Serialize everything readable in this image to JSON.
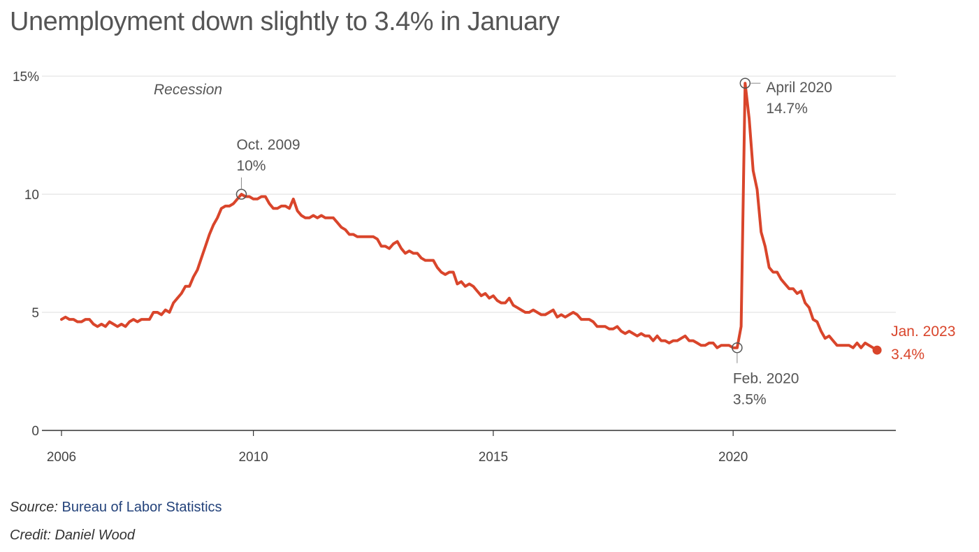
{
  "title": "Unemployment down slightly to 3.4% in January",
  "colors": {
    "line": "#d9452b",
    "text": "#555555",
    "grid": "#dddddd",
    "axis": "#333333",
    "source_link": "#23427a"
  },
  "chart_data": {
    "type": "line",
    "title": "Unemployment down slightly to 3.4% in January",
    "xlabel": "",
    "ylabel": "",
    "xlim": [
      2006,
      2023.1
    ],
    "ylim": [
      0,
      15
    ],
    "x_ticks": [
      {
        "value": 2006,
        "label": "2006"
      },
      {
        "value": 2010,
        "label": "2010"
      },
      {
        "value": 2015,
        "label": "2015"
      },
      {
        "value": 2020,
        "label": "2020"
      }
    ],
    "y_ticks": [
      {
        "value": 0,
        "label": "0"
      },
      {
        "value": 5,
        "label": "5"
      },
      {
        "value": 10,
        "label": "10"
      },
      {
        "value": 15,
        "label": "15%"
      }
    ],
    "grid": true,
    "series_name": "",
    "start_year": 2006,
    "start_month": 1,
    "values": [
      4.7,
      4.8,
      4.7,
      4.7,
      4.6,
      4.6,
      4.7,
      4.7,
      4.5,
      4.4,
      4.5,
      4.4,
      4.6,
      4.5,
      4.4,
      4.5,
      4.4,
      4.6,
      4.7,
      4.6,
      4.7,
      4.7,
      4.7,
      5.0,
      5.0,
      4.9,
      5.1,
      5.0,
      5.4,
      5.6,
      5.8,
      6.1,
      6.1,
      6.5,
      6.8,
      7.3,
      7.8,
      8.3,
      8.7,
      9.0,
      9.4,
      9.5,
      9.5,
      9.6,
      9.8,
      10.0,
      9.9,
      9.9,
      9.8,
      9.8,
      9.9,
      9.9,
      9.6,
      9.4,
      9.4,
      9.5,
      9.5,
      9.4,
      9.8,
      9.3,
      9.1,
      9.0,
      9.0,
      9.1,
      9.0,
      9.1,
      9.0,
      9.0,
      9.0,
      8.8,
      8.6,
      8.5,
      8.3,
      8.3,
      8.2,
      8.2,
      8.2,
      8.2,
      8.2,
      8.1,
      7.8,
      7.8,
      7.7,
      7.9,
      8.0,
      7.7,
      7.5,
      7.6,
      7.5,
      7.5,
      7.3,
      7.2,
      7.2,
      7.2,
      6.9,
      6.7,
      6.6,
      6.7,
      6.7,
      6.2,
      6.3,
      6.1,
      6.2,
      6.1,
      5.9,
      5.7,
      5.8,
      5.6,
      5.7,
      5.5,
      5.4,
      5.4,
      5.6,
      5.3,
      5.2,
      5.1,
      5.0,
      5.0,
      5.1,
      5.0,
      4.9,
      4.9,
      5.0,
      5.1,
      4.8,
      4.9,
      4.8,
      4.9,
      5.0,
      4.9,
      4.7,
      4.7,
      4.7,
      4.6,
      4.4,
      4.4,
      4.4,
      4.3,
      4.3,
      4.4,
      4.2,
      4.1,
      4.2,
      4.1,
      4.0,
      4.1,
      4.0,
      4.0,
      3.8,
      4.0,
      3.8,
      3.8,
      3.7,
      3.8,
      3.8,
      3.9,
      4.0,
      3.8,
      3.8,
      3.7,
      3.6,
      3.6,
      3.7,
      3.7,
      3.5,
      3.6,
      3.6,
      3.6,
      3.5,
      3.5,
      4.4,
      14.7,
      13.2,
      11.0,
      10.2,
      8.4,
      7.8,
      6.9,
      6.7,
      6.7,
      6.4,
      6.2,
      6.0,
      6.0,
      5.8,
      5.9,
      5.4,
      5.2,
      4.7,
      4.6,
      4.2,
      3.9,
      4.0,
      3.8,
      3.6,
      3.6,
      3.6,
      3.6,
      3.5,
      3.7,
      3.5,
      3.7,
      3.6,
      3.5,
      3.4
    ],
    "annotations": [
      {
        "x": 2009.75,
        "y": 10.0,
        "line1": "Oct. 2009",
        "line2": "10%"
      },
      {
        "x": 2020.083,
        "y": 3.5,
        "line1": "Feb. 2020",
        "line2": "3.5%"
      },
      {
        "x": 2020.25,
        "y": 14.7,
        "line1": "April 2020",
        "line2": "14.7%"
      },
      {
        "x": 2023.0,
        "y": 3.4,
        "line1": "Jan. 2023",
        "line2": "3.4%"
      }
    ],
    "recession_label": "Recession"
  },
  "footer": {
    "source_label": "Source:",
    "source_text": "Bureau of Labor Statistics",
    "credit": "Credit: Daniel Wood"
  }
}
